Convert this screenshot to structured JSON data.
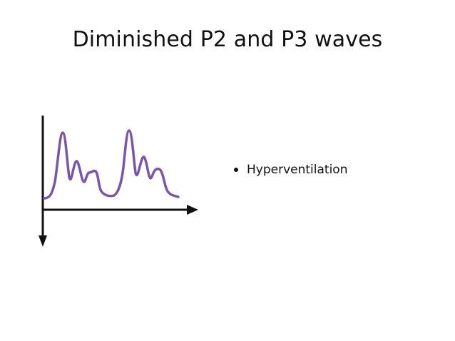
{
  "slide": {
    "title": "Diminished P2 and P3 waves",
    "bullets": [
      "Hyperventilation"
    ]
  },
  "colors": {
    "text": "#111111",
    "wave": "#7a56a8",
    "axes": "#111111"
  },
  "figure": {
    "waveform_icon": "icp-waveform-icon"
  }
}
